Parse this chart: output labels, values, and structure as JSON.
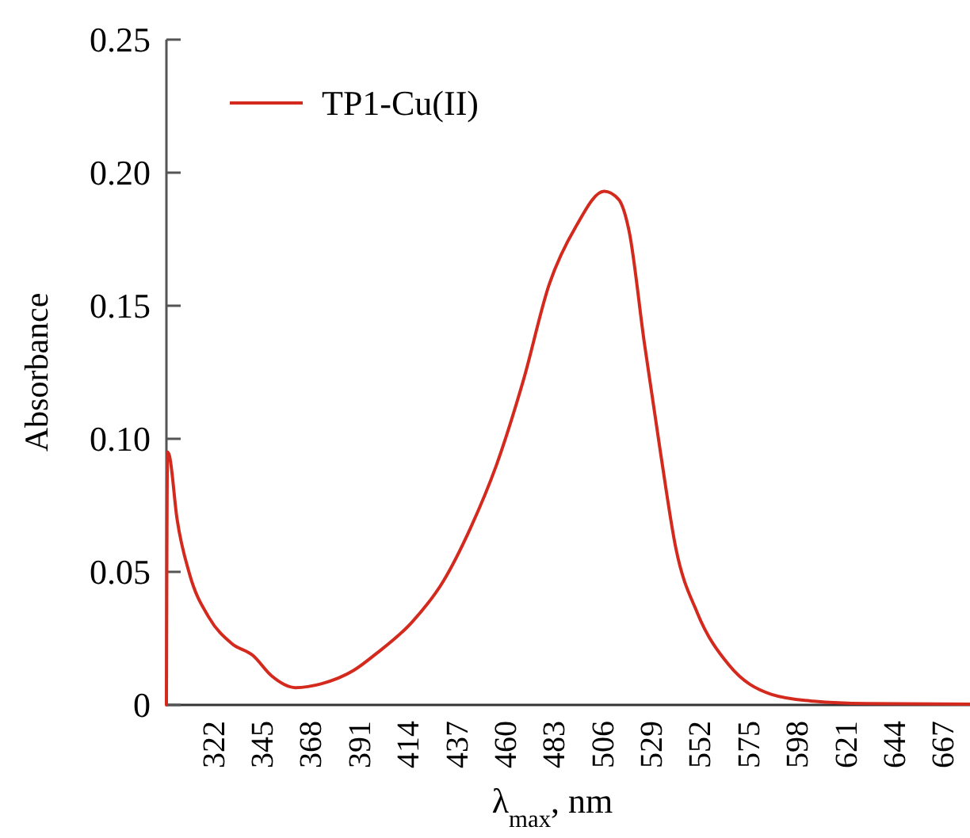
{
  "chart_data": {
    "type": "line",
    "xlabel": "λ$_{max}$, nm",
    "ylabel": "Absorbance",
    "xlim": [
      300,
      680
    ],
    "ylim": [
      0,
      0.25
    ],
    "xticks": [
      322,
      345,
      368,
      391,
      414,
      437,
      460,
      483,
      506,
      529,
      552,
      575,
      598,
      621,
      644,
      667
    ],
    "yticks": [
      0,
      {
        "value": 0.05,
        "label": "0.05"
      },
      {
        "value": 0.1,
        "label": "0.10"
      },
      {
        "value": 0.15,
        "label": "0.15"
      },
      {
        "value": 0.2,
        "label": "0.20"
      },
      {
        "value": 0.25,
        "label": "0.25"
      }
    ],
    "x": [
      300,
      300.5,
      301.3,
      305,
      311,
      320,
      331,
      341,
      349.6,
      361,
      373.5,
      388.6,
      398.8,
      416,
      431,
      443.8,
      456,
      468.8,
      481,
      493.8,
      507,
      513.8,
      518.8,
      526,
      533.8,
      541,
      551,
      566,
      586,
      606,
      631,
      680
    ],
    "series": [
      {
        "name": "TP1-Cu(II)",
        "color": "#d42a1e",
        "values": [
          0,
          0.095,
          0.094,
          0.07,
          0.049,
          0.033,
          0.023,
          0.0185,
          0.011,
          0.0065,
          0.008,
          0.013,
          0.019,
          0.031,
          0.0466,
          0.0665,
          0.09,
          0.122,
          0.158,
          0.18,
          0.193,
          0.19,
          0.178,
          0.136,
          0.094,
          0.0585,
          0.0347,
          0.015,
          0.004,
          0.0014,
          0.0005,
          0.0003
        ]
      }
    ],
    "legend": "top left",
    "grid": false,
    "marker": "none",
    "line_style": "solid"
  }
}
